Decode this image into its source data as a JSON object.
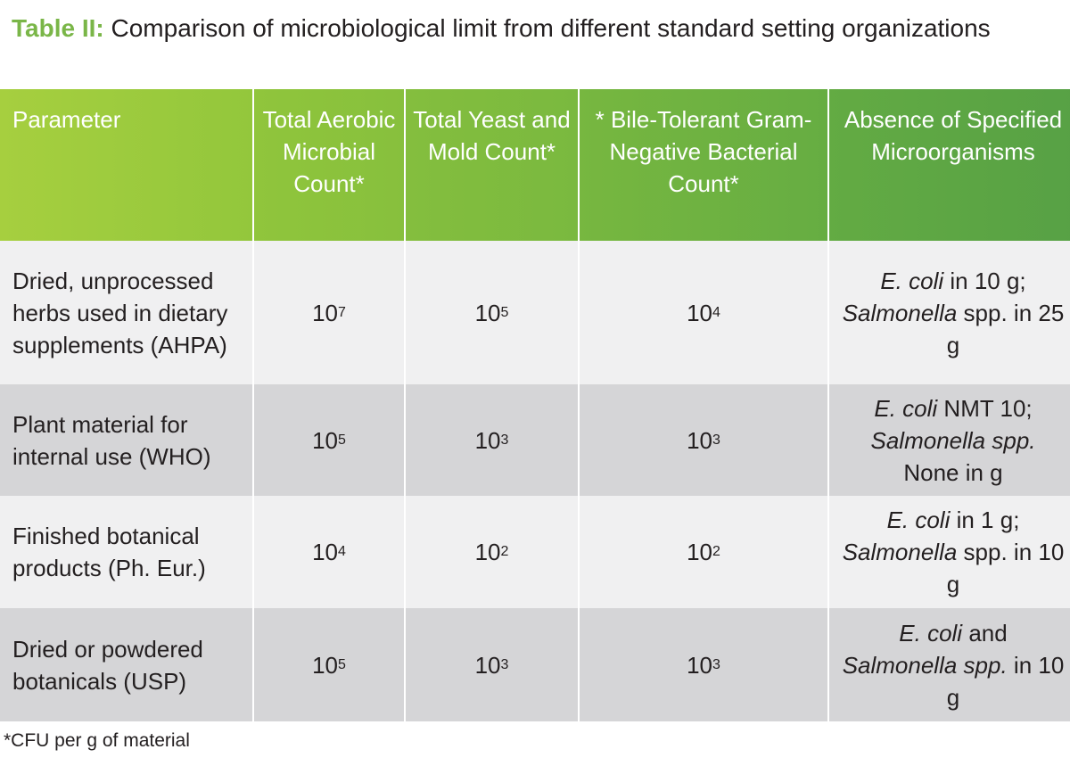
{
  "caption": {
    "label": "Table II:",
    "text": "Comparison of microbiological limit from different standard setting organizations"
  },
  "table": {
    "headers": [
      "Parameter",
      "Total Aerobic Microbial Count*",
      "Total Yeast and Mold Count*",
      "* Bile-Tolerant Gram-Negative Bacterial Count*",
      "Absence of Specified Microorganisms"
    ],
    "rows": [
      {
        "parameter": "Dried, unprocessed herbs used in dietary supplements (AHPA)",
        "aerobic": {
          "base": "10",
          "exp": "7"
        },
        "yeast": {
          "base": "10",
          "exp": "5"
        },
        "bile": {
          "base": "10",
          "exp": "4"
        },
        "organisms": {
          "a": "E. coli",
          "b": " in 10 g; ",
          "c": "Salmonella",
          "d": " spp. in 25 g"
        }
      },
      {
        "parameter": "Plant material for internal use (WHO)",
        "aerobic": {
          "base": "10",
          "exp": "5"
        },
        "yeast": {
          "base": "10",
          "exp": "3"
        },
        "bile": {
          "base": "10",
          "exp": "3"
        },
        "organisms": {
          "a": "E. coli",
          "b": " NMT 10; ",
          "c": "Salmonella spp.",
          "d": " None in g"
        }
      },
      {
        "parameter": "Finished botanical products (Ph. Eur.)",
        "aerobic": {
          "base": "10",
          "exp": "4"
        },
        "yeast": {
          "base": "10",
          "exp": "2"
        },
        "bile": {
          "base": "10",
          "exp": "2"
        },
        "organisms": {
          "a": "E. coli",
          "b": " in 1 g; ",
          "c": "Salmonella",
          "d": " spp. in 10 g"
        }
      },
      {
        "parameter": "Dried or powdered botanicals (USP)",
        "aerobic": {
          "base": "10",
          "exp": "5"
        },
        "yeast": {
          "base": "10",
          "exp": "3"
        },
        "bile": {
          "base": "10",
          "exp": "3"
        },
        "organisms": {
          "a": "E. coli",
          "b": " and ",
          "c": "Salmonella spp.",
          "d": " in 10 g"
        }
      }
    ]
  },
  "footnote": "*CFU per g of material",
  "colors": {
    "label_green": "#7ab648",
    "header_green_start": "#a6cf3f",
    "header_green_end": "#57a145",
    "row_light": "#f0f0f1",
    "row_dark": "#d5d5d7"
  }
}
